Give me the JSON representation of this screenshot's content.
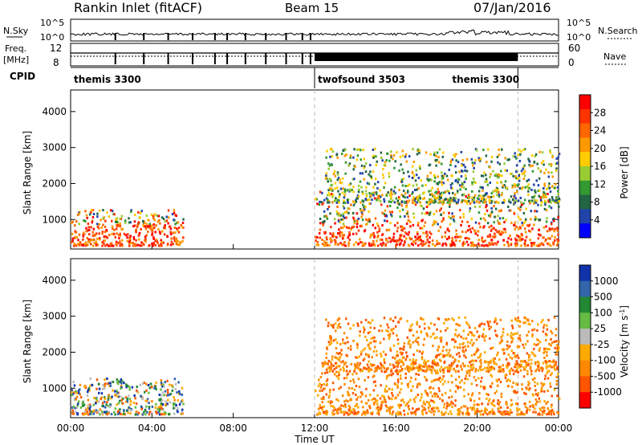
{
  "header": {
    "station": "Rankin Inlet (fitACF)",
    "beam": "Beam 15",
    "date": "07/Jan/2016"
  },
  "panels": {
    "nsky_label": "N.Sky",
    "nsearch_label": "N.Search",
    "nsky_ticks": [
      "10^5",
      "10^0"
    ],
    "nsearch_ticks": [
      "10^5",
      "10^0"
    ],
    "freq_label": "Freq.",
    "freq_unit": "[MHz]",
    "freq_ticks": [
      "12",
      "8"
    ],
    "nave_label": "Nave",
    "nave_ticks": [
      "60",
      "0"
    ],
    "cpid_label": "CPID",
    "cpid_segments": [
      {
        "name": "themis 3300",
        "start_hour": 0,
        "end_hour": 12
      },
      {
        "name": "twofsound 3503",
        "start_hour": 12,
        "end_hour": 22
      },
      {
        "name": "themis 3300",
        "start_hour": 22,
        "end_hour": 24
      }
    ]
  },
  "chart_data": [
    {
      "type": "heatmap",
      "title": "",
      "xlabel": "",
      "ylabel": "Slant Range [km]",
      "xlim_hours": [
        0,
        24
      ],
      "ylim": [
        180,
        4600
      ],
      "y_ticks": [
        1000,
        2000,
        3000,
        4000
      ],
      "x_ticks": [
        0,
        4,
        8,
        12,
        16,
        20,
        24
      ],
      "colorbar": {
        "label": "Power [dB]",
        "ticks": [
          "28",
          "24",
          "20",
          "16",
          "12",
          "8",
          "4"
        ],
        "colors": [
          "#ff0000",
          "#ff3300",
          "#ff6600",
          "#ff9900",
          "#ffcc00",
          "#99cc33",
          "#339933",
          "#226644",
          "#2244aa",
          "#0000ff"
        ]
      },
      "features": [
        {
          "hours": [
            0,
            5.5
          ],
          "range_km": [
            300,
            1300
          ],
          "level": "high"
        },
        {
          "hours": [
            12,
            24
          ],
          "range_km": [
            300,
            1800
          ],
          "level": "high"
        },
        {
          "hours": [
            12.5,
            24
          ],
          "range_km": [
            1500,
            3000
          ],
          "level": "low"
        }
      ]
    },
    {
      "type": "heatmap",
      "title": "",
      "xlabel": "Time UT",
      "ylabel": "Slant Range [km]",
      "xlim_hours": [
        0,
        24
      ],
      "ylim": [
        180,
        4600
      ],
      "y_ticks": [
        1000,
        2000,
        3000,
        4000
      ],
      "x_ticks": [
        0,
        4,
        8,
        12,
        16,
        20,
        24
      ],
      "x_tick_labels": [
        "00:00",
        "04:00",
        "08:00",
        "12:00",
        "16:00",
        "20:00",
        "00:00"
      ],
      "colorbar": {
        "label": "Velocity [m s^-1]",
        "ticks": [
          "1000",
          "500",
          "100",
          "25",
          "-25",
          "-100",
          "-500",
          "-1000"
        ],
        "colors": [
          "#1133aa",
          "#3366aa",
          "#228833",
          "#66bb44",
          "#bbbbbb",
          "#ffaa00",
          "#ff8800",
          "#ff5500",
          "#ff0000"
        ]
      },
      "features": [
        {
          "hours": [
            0,
            5.5
          ],
          "range_km": [
            300,
            1300
          ],
          "level": "mixed"
        },
        {
          "hours": [
            12,
            24
          ],
          "range_km": [
            300,
            1800
          ],
          "level": "negative"
        },
        {
          "hours": [
            12.5,
            24
          ],
          "range_km": [
            1500,
            3000
          ],
          "level": "negative"
        }
      ]
    }
  ],
  "time_axis_label": "Time UT",
  "time_tick_labels": [
    "00:00",
    "04:00",
    "08:00",
    "12:00",
    "16:00",
    "20:00",
    "00:00"
  ]
}
